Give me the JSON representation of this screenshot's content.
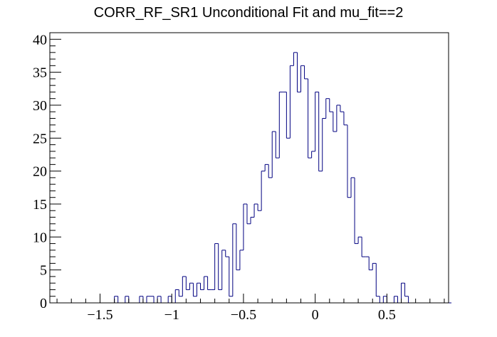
{
  "chart_data": {
    "type": "histogram",
    "title": "CORR_RF_SR1 Unconditional Fit and mu_fit==2",
    "xlabel": "",
    "ylabel": "",
    "xlim": [
      -1.85,
      0.93
    ],
    "ylim": [
      0,
      41
    ],
    "bin_width": 0.025,
    "x_start": -1.85,
    "x_ticks": [
      -1.5,
      -1,
      -0.5,
      0,
      0.5
    ],
    "x_tick_labels": [
      "−1.5",
      "−1",
      "−0.5",
      "0",
      "0.5"
    ],
    "y_ticks": [
      0,
      5,
      10,
      15,
      20,
      25,
      30,
      35,
      40
    ],
    "y_tick_labels": [
      "0",
      "5",
      "10",
      "15",
      "20",
      "25",
      "30",
      "35",
      "40"
    ],
    "grid": false,
    "line_color": "#000080",
    "values": [
      0,
      0,
      0,
      0,
      0,
      0,
      0,
      0,
      0,
      0,
      0,
      0,
      0,
      0,
      0,
      0,
      0,
      0,
      1,
      0,
      0,
      1,
      0,
      0,
      0,
      1,
      0,
      1,
      1,
      0,
      1,
      0,
      0,
      1,
      0,
      2,
      1,
      4,
      2,
      3,
      1,
      3,
      2,
      4,
      2,
      2,
      9,
      2,
      8,
      7,
      1,
      12,
      5,
      8,
      15,
      12,
      13,
      15,
      14,
      20,
      21,
      19,
      26,
      22,
      32,
      32,
      25,
      36,
      38,
      32,
      36,
      34,
      22,
      23,
      32,
      20,
      28,
      31,
      29,
      26,
      30,
      29,
      27,
      16,
      19,
      9,
      10,
      7,
      7,
      5,
      6,
      1,
      0,
      1,
      0,
      0,
      1,
      0,
      3,
      1,
      0,
      0,
      0,
      0,
      0,
      0,
      0,
      0,
      0,
      0,
      0,
      0
    ]
  }
}
